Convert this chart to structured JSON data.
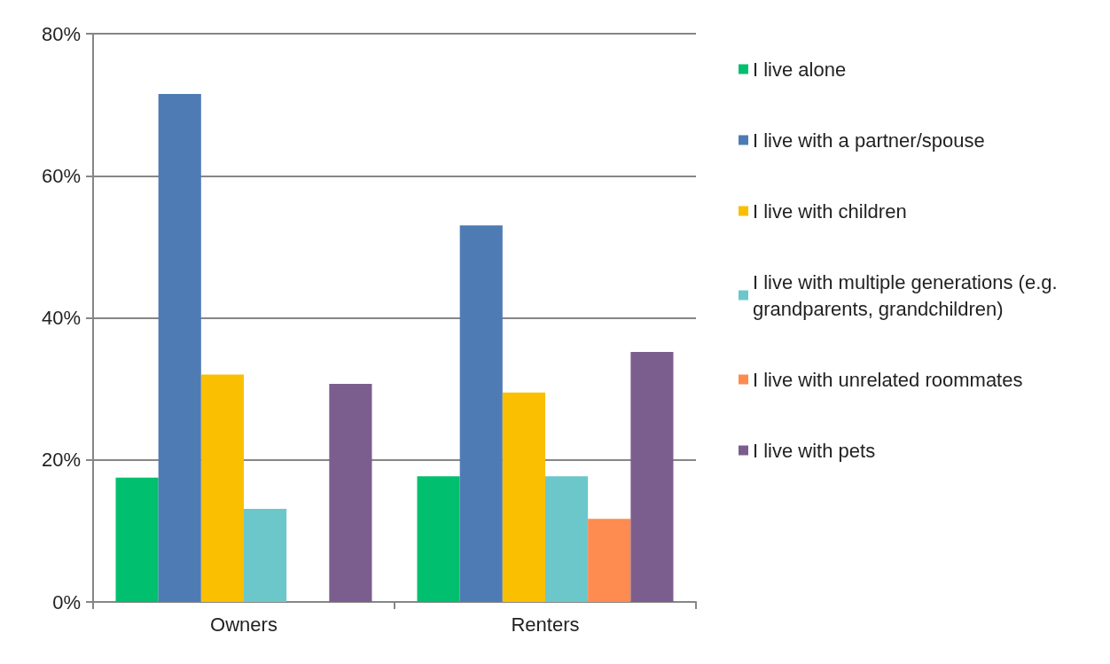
{
  "chart_data": {
    "type": "bar",
    "categories": [
      "Owners",
      "Renters"
    ],
    "series": [
      {
        "name": "I live alone",
        "color": "#00bf6f",
        "values": [
          17.5,
          17.7
        ]
      },
      {
        "name": "I live with a partner/spouse",
        "color": "#4f7bb5",
        "values": [
          71.5,
          53.0
        ]
      },
      {
        "name": "I live with children",
        "color": "#f9bf00",
        "values": [
          32.0,
          29.5
        ]
      },
      {
        "name": "I live with multiple generations (e.g. grandparents, grandchildren)",
        "color": "#6cc7cb",
        "values": [
          13.1,
          17.7
        ]
      },
      {
        "name": "I live with unrelated roommates",
        "color": "#fe8b50",
        "values": [
          null,
          11.7
        ]
      },
      {
        "name": "I live with pets",
        "color": "#7c5e8e",
        "values": [
          30.7,
          35.2
        ]
      }
    ],
    "ylim": [
      0,
      80
    ],
    "yticks": [
      {
        "value": 0,
        "label": "0%"
      },
      {
        "value": 20,
        "label": "20%"
      },
      {
        "value": 40,
        "label": "40%"
      },
      {
        "value": 60,
        "label": "60%"
      },
      {
        "value": 80,
        "label": "80%"
      }
    ],
    "grid": "y",
    "legend": "right"
  }
}
